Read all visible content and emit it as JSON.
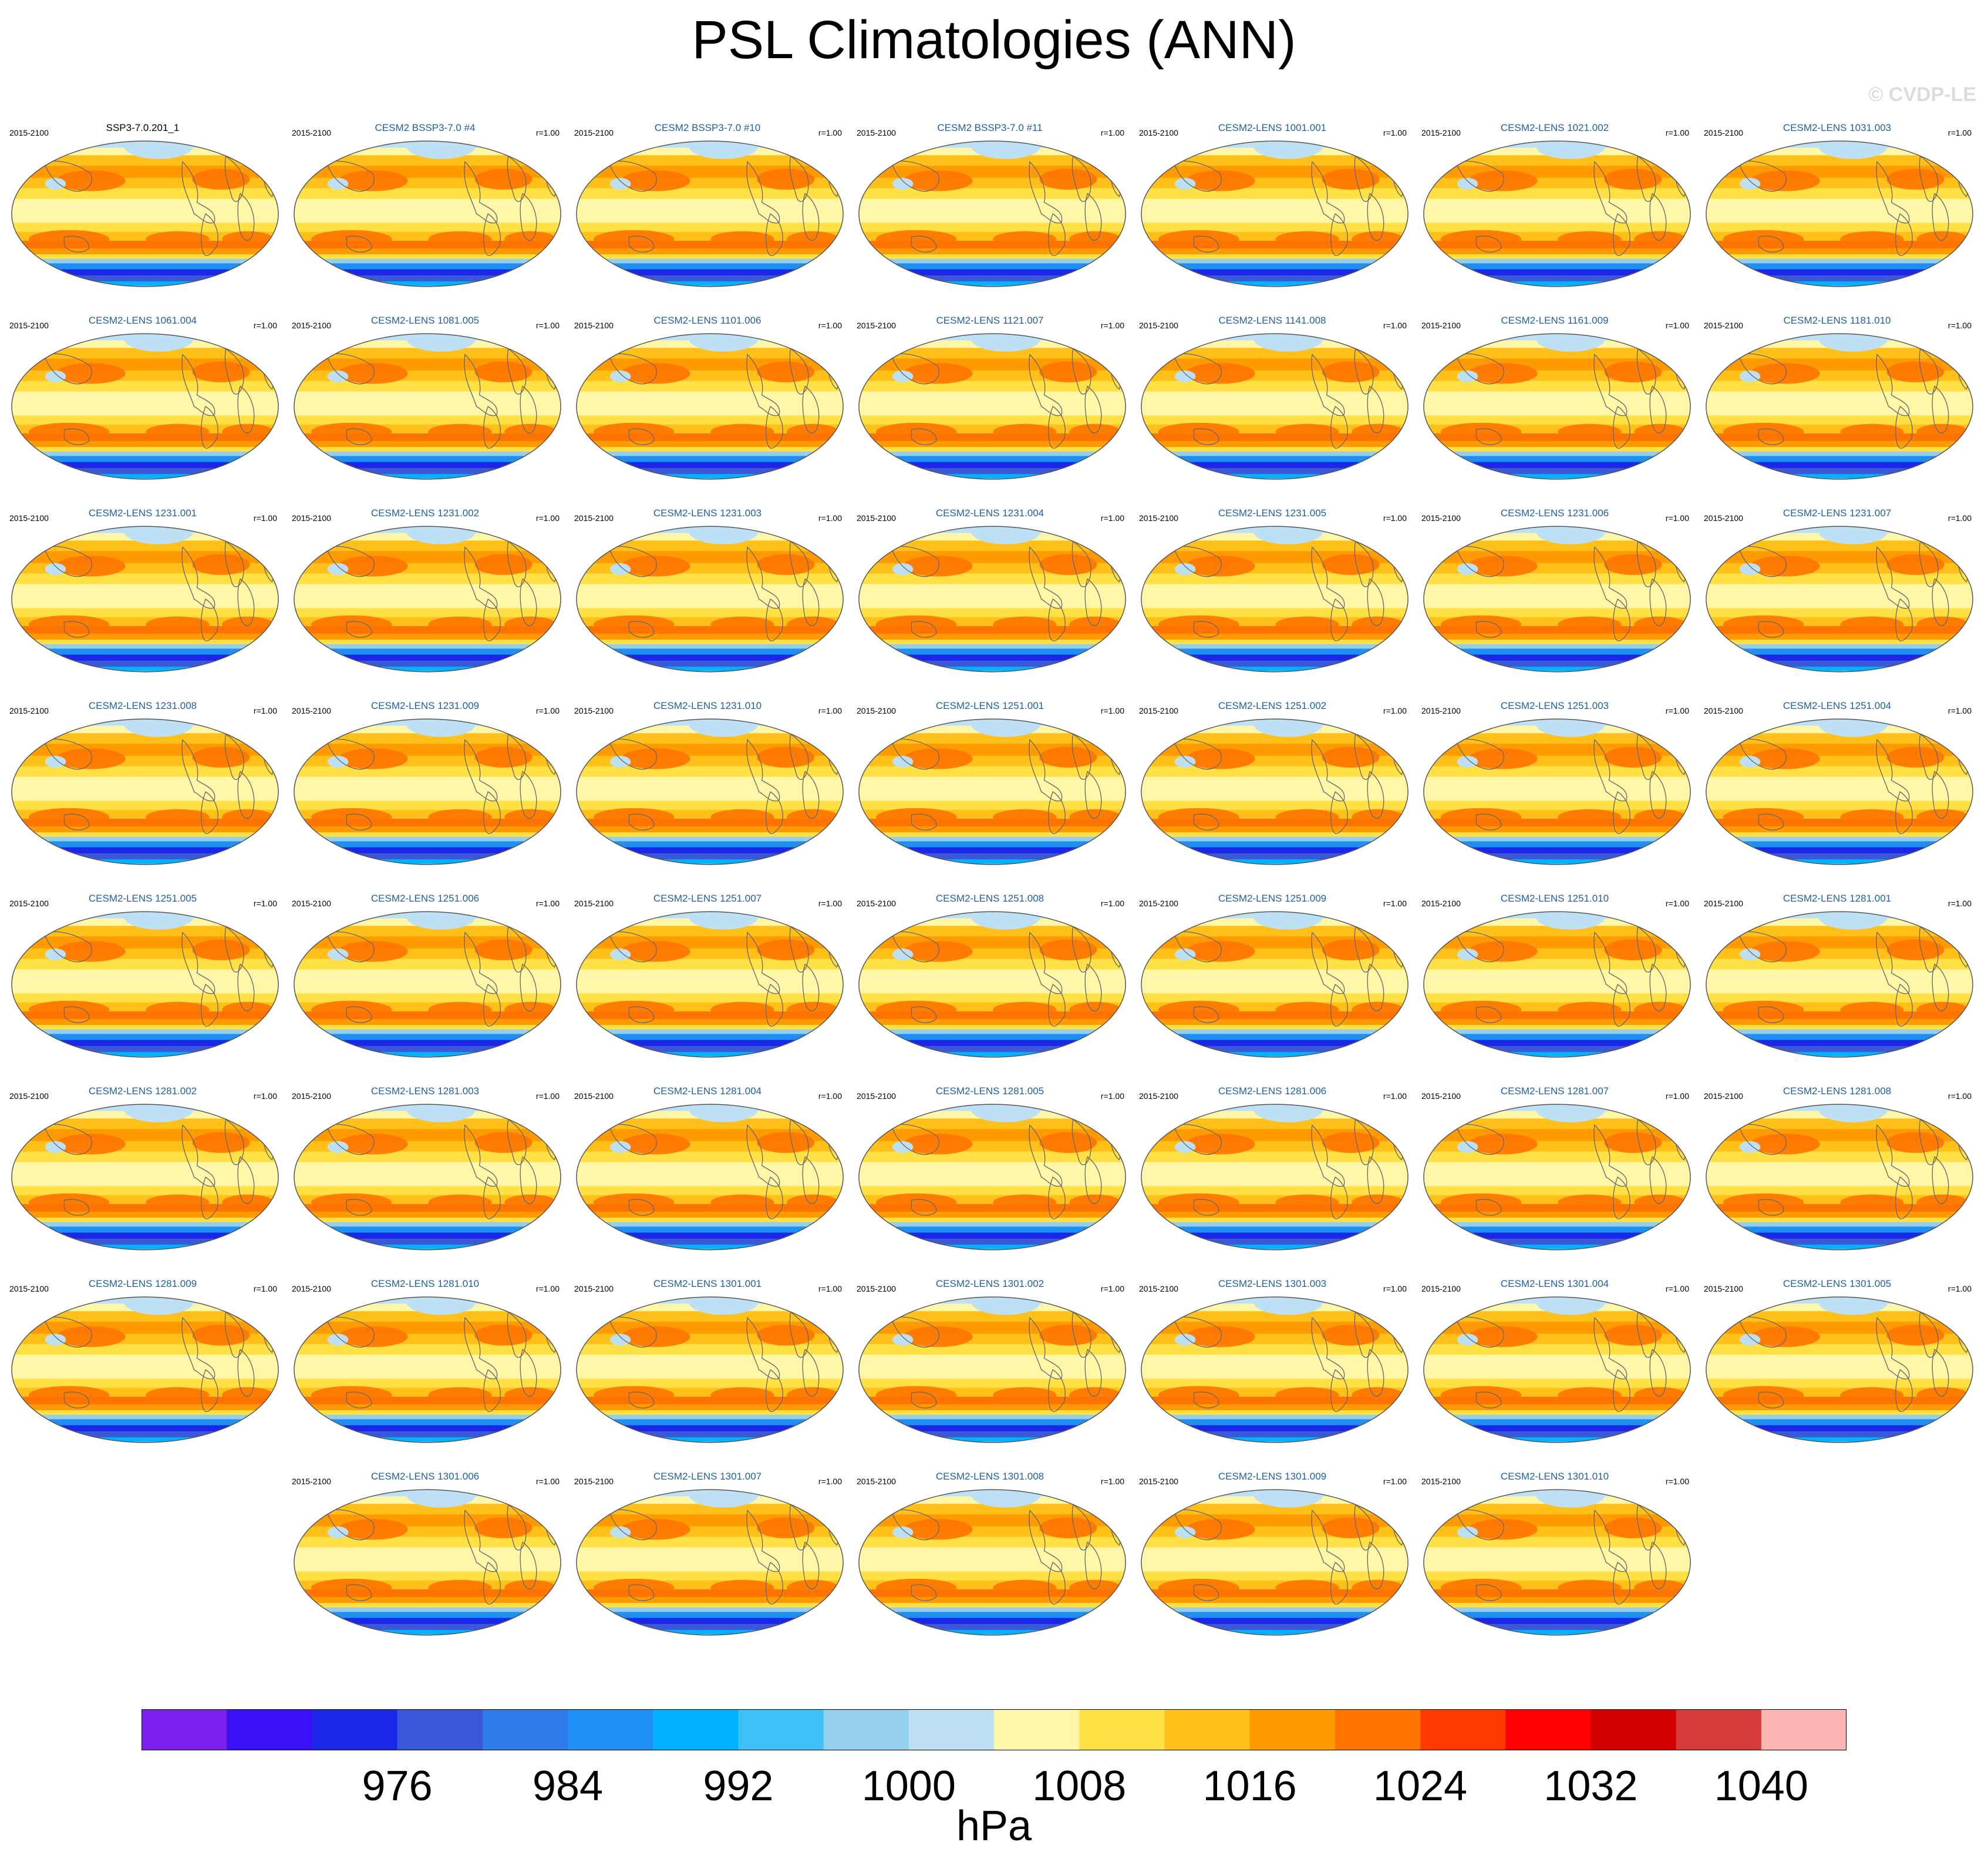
{
  "title": "PSL Climatologies (ANN)",
  "watermark": "© CVDP-LE",
  "units": "hPa",
  "chart_data": {
    "type": "heatmap",
    "title": "PSL Climatologies (ANN)",
    "variable": "PSL",
    "season": "ANN",
    "period": "2015-2100",
    "panels": [
      {
        "title": "SSP3-7.0.201_1",
        "period": "2015-2100",
        "r": ""
      },
      {
        "title": "CESM2 BSSP3-7.0 #4",
        "period": "2015-2100",
        "r": "r=1.00"
      },
      {
        "title": "CESM2 BSSP3-7.0 #10",
        "period": "2015-2100",
        "r": "r=1.00"
      },
      {
        "title": "CESM2 BSSP3-7.0 #11",
        "period": "2015-2100",
        "r": "r=1.00"
      },
      {
        "title": "CESM2-LENS 1001.001",
        "period": "2015-2100",
        "r": "r=1.00"
      },
      {
        "title": "CESM2-LENS 1021.002",
        "period": "2015-2100",
        "r": "r=1.00"
      },
      {
        "title": "CESM2-LENS 1031.003",
        "period": "2015-2100",
        "r": "r=1.00"
      },
      {
        "title": "CESM2-LENS 1061.004",
        "period": "2015-2100",
        "r": "r=1.00"
      },
      {
        "title": "CESM2-LENS 1081.005",
        "period": "2015-2100",
        "r": "r=1.00"
      },
      {
        "title": "CESM2-LENS 1101.006",
        "period": "2015-2100",
        "r": "r=1.00"
      },
      {
        "title": "CESM2-LENS 1121.007",
        "period": "2015-2100",
        "r": "r=1.00"
      },
      {
        "title": "CESM2-LENS 1141.008",
        "period": "2015-2100",
        "r": "r=1.00"
      },
      {
        "title": "CESM2-LENS 1161.009",
        "period": "2015-2100",
        "r": "r=1.00"
      },
      {
        "title": "CESM2-LENS 1181.010",
        "period": "2015-2100",
        "r": "r=1.00"
      },
      {
        "title": "CESM2-LENS 1231.001",
        "period": "2015-2100",
        "r": "r=1.00"
      },
      {
        "title": "CESM2-LENS 1231.002",
        "period": "2015-2100",
        "r": "r=1.00"
      },
      {
        "title": "CESM2-LENS 1231.003",
        "period": "2015-2100",
        "r": "r=1.00"
      },
      {
        "title": "CESM2-LENS 1231.004",
        "period": "2015-2100",
        "r": "r=1.00"
      },
      {
        "title": "CESM2-LENS 1231.005",
        "period": "2015-2100",
        "r": "r=1.00"
      },
      {
        "title": "CESM2-LENS 1231.006",
        "period": "2015-2100",
        "r": "r=1.00"
      },
      {
        "title": "CESM2-LENS 1231.007",
        "period": "2015-2100",
        "r": "r=1.00"
      },
      {
        "title": "CESM2-LENS 1231.008",
        "period": "2015-2100",
        "r": "r=1.00"
      },
      {
        "title": "CESM2-LENS 1231.009",
        "period": "2015-2100",
        "r": "r=1.00"
      },
      {
        "title": "CESM2-LENS 1231.010",
        "period": "2015-2100",
        "r": "r=1.00"
      },
      {
        "title": "CESM2-LENS 1251.001",
        "period": "2015-2100",
        "r": "r=1.00"
      },
      {
        "title": "CESM2-LENS 1251.002",
        "period": "2015-2100",
        "r": "r=1.00"
      },
      {
        "title": "CESM2-LENS 1251.003",
        "period": "2015-2100",
        "r": "r=1.00"
      },
      {
        "title": "CESM2-LENS 1251.004",
        "period": "2015-2100",
        "r": "r=1.00"
      },
      {
        "title": "CESM2-LENS 1251.005",
        "period": "2015-2100",
        "r": "r=1.00"
      },
      {
        "title": "CESM2-LENS 1251.006",
        "period": "2015-2100",
        "r": "r=1.00"
      },
      {
        "title": "CESM2-LENS 1251.007",
        "period": "2015-2100",
        "r": "r=1.00"
      },
      {
        "title": "CESM2-LENS 1251.008",
        "period": "2015-2100",
        "r": "r=1.00"
      },
      {
        "title": "CESM2-LENS 1251.009",
        "period": "2015-2100",
        "r": "r=1.00"
      },
      {
        "title": "CESM2-LENS 1251.010",
        "period": "2015-2100",
        "r": "r=1.00"
      },
      {
        "title": "CESM2-LENS 1281.001",
        "period": "2015-2100",
        "r": "r=1.00"
      },
      {
        "title": "CESM2-LENS 1281.002",
        "period": "2015-2100",
        "r": "r=1.00"
      },
      {
        "title": "CESM2-LENS 1281.003",
        "period": "2015-2100",
        "r": "r=1.00"
      },
      {
        "title": "CESM2-LENS 1281.004",
        "period": "2015-2100",
        "r": "r=1.00"
      },
      {
        "title": "CESM2-LENS 1281.005",
        "period": "2015-2100",
        "r": "r=1.00"
      },
      {
        "title": "CESM2-LENS 1281.006",
        "period": "2015-2100",
        "r": "r=1.00"
      },
      {
        "title": "CESM2-LENS 1281.007",
        "period": "2015-2100",
        "r": "r=1.00"
      },
      {
        "title": "CESM2-LENS 1281.008",
        "period": "2015-2100",
        "r": "r=1.00"
      },
      {
        "title": "CESM2-LENS 1281.009",
        "period": "2015-2100",
        "r": "r=1.00"
      },
      {
        "title": "CESM2-LENS 1281.010",
        "period": "2015-2100",
        "r": "r=1.00"
      },
      {
        "title": "CESM2-LENS 1301.001",
        "period": "2015-2100",
        "r": "r=1.00"
      },
      {
        "title": "CESM2-LENS 1301.002",
        "period": "2015-2100",
        "r": "r=1.00"
      },
      {
        "title": "CESM2-LENS 1301.003",
        "period": "2015-2100",
        "r": "r=1.00"
      },
      {
        "title": "CESM2-LENS 1301.004",
        "period": "2015-2100",
        "r": "r=1.00"
      },
      {
        "title": "CESM2-LENS 1301.005",
        "period": "2015-2100",
        "r": "r=1.00"
      },
      {
        "title": "CESM2-LENS 1301.006",
        "period": "2015-2100",
        "r": "r=1.00"
      },
      {
        "title": "CESM2-LENS 1301.007",
        "period": "2015-2100",
        "r": "r=1.00"
      },
      {
        "title": "CESM2-LENS 1301.008",
        "period": "2015-2100",
        "r": "r=1.00"
      },
      {
        "title": "CESM2-LENS 1301.009",
        "period": "2015-2100",
        "r": "r=1.00"
      },
      {
        "title": "CESM2-LENS 1301.010",
        "period": "2015-2100",
        "r": "r=1.00"
      }
    ],
    "colorbar": {
      "units": "hPa",
      "tick_labels": [
        "976",
        "984",
        "992",
        "1000",
        "1008",
        "1016",
        "1024",
        "1032",
        "1040"
      ],
      "tick_values": [
        976,
        984,
        992,
        1000,
        1008,
        1016,
        1024,
        1032,
        1040
      ],
      "levels_min": 968,
      "levels_step": 4,
      "colors": [
        "#7d22ee",
        "#3b10f5",
        "#1a26e8",
        "#3a58d8",
        "#2f7be9",
        "#1e90f5",
        "#00b2ff",
        "#3cc0f5",
        "#94cfee",
        "#bde0f5",
        "#fff6a8",
        "#ffe045",
        "#ffc01a",
        "#ff9a00",
        "#ff7400",
        "#ff3a00",
        "#ff0000",
        "#d40000",
        "#d43a3a",
        "#ffb4b4"
      ]
    }
  }
}
